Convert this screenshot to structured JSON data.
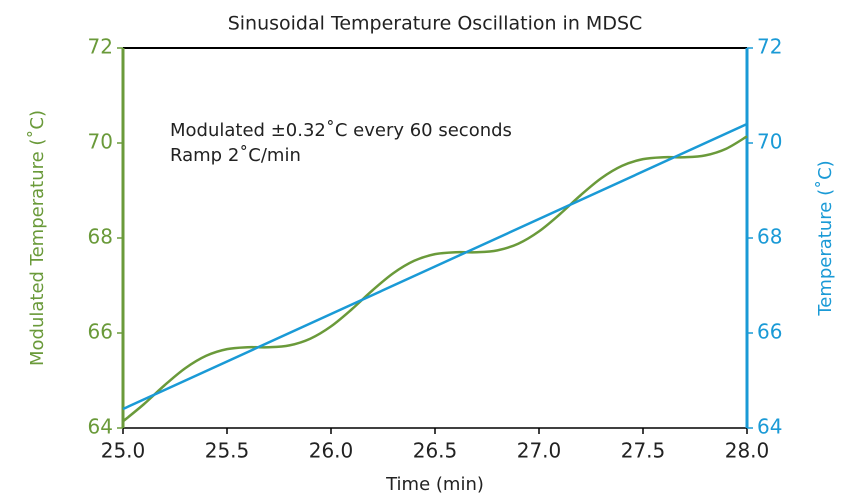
{
  "chart_data": {
    "type": "line",
    "title": "Sinusoidal Temperature Oscillation in MDSC",
    "xlabel": "Time (min)",
    "ylabel": "Modulated Temperature (˚C)",
    "y2label": "Temperature (˚C)",
    "annotations": [
      "Modulated ±0.32˚C every 60 seconds",
      "Ramp 2˚C/min"
    ],
    "xlim": [
      25,
      28
    ],
    "xticks": [
      {
        "value": 25,
        "label": "25.0"
      },
      {
        "value": 25.5,
        "label": "25.5"
      },
      {
        "value": 26,
        "label": "26.0"
      },
      {
        "value": 26.5,
        "label": "26.5"
      },
      {
        "value": 27,
        "label": "27.0"
      },
      {
        "value": 27.5,
        "label": "27.5"
      },
      {
        "value": 28,
        "label": "28.0"
      }
    ],
    "ylim": [
      64,
      72
    ],
    "yticks": [
      64,
      66,
      68,
      70,
      72
    ],
    "y2lim": [
      64,
      72
    ],
    "y2ticks": [
      64,
      66,
      68,
      70,
      72
    ],
    "ycolor": "#6a9a3a",
    "y2color": "#1a9ad6",
    "series": [
      {
        "color": "#6a9a3a",
        "x": [
          25,
          25.1,
          25.2,
          25.3,
          25.4,
          25.5,
          25.6,
          25.7,
          25.8,
          25.9,
          26,
          26.1,
          26.2,
          26.3,
          26.4,
          26.5,
          26.6,
          26.7,
          26.8,
          26.9,
          27,
          27.1,
          27.2,
          27.3,
          27.4,
          27.5,
          27.6,
          27.7,
          27.8,
          27.9,
          28
        ],
        "values": [
          64.14,
          64.5,
          64.9,
          65.26,
          65.52,
          65.66,
          65.7,
          65.7,
          65.74,
          65.88,
          66.14,
          66.5,
          66.9,
          67.26,
          67.52,
          67.66,
          67.7,
          67.7,
          67.74,
          67.88,
          68.14,
          68.5,
          68.9,
          69.26,
          69.52,
          69.66,
          69.7,
          69.7,
          69.74,
          69.88,
          70.14
        ]
      },
      {
        "color": "#1a9ad6",
        "axis": "y2",
        "x": [
          25,
          28
        ],
        "values": [
          64.4,
          70.4
        ]
      }
    ]
  }
}
